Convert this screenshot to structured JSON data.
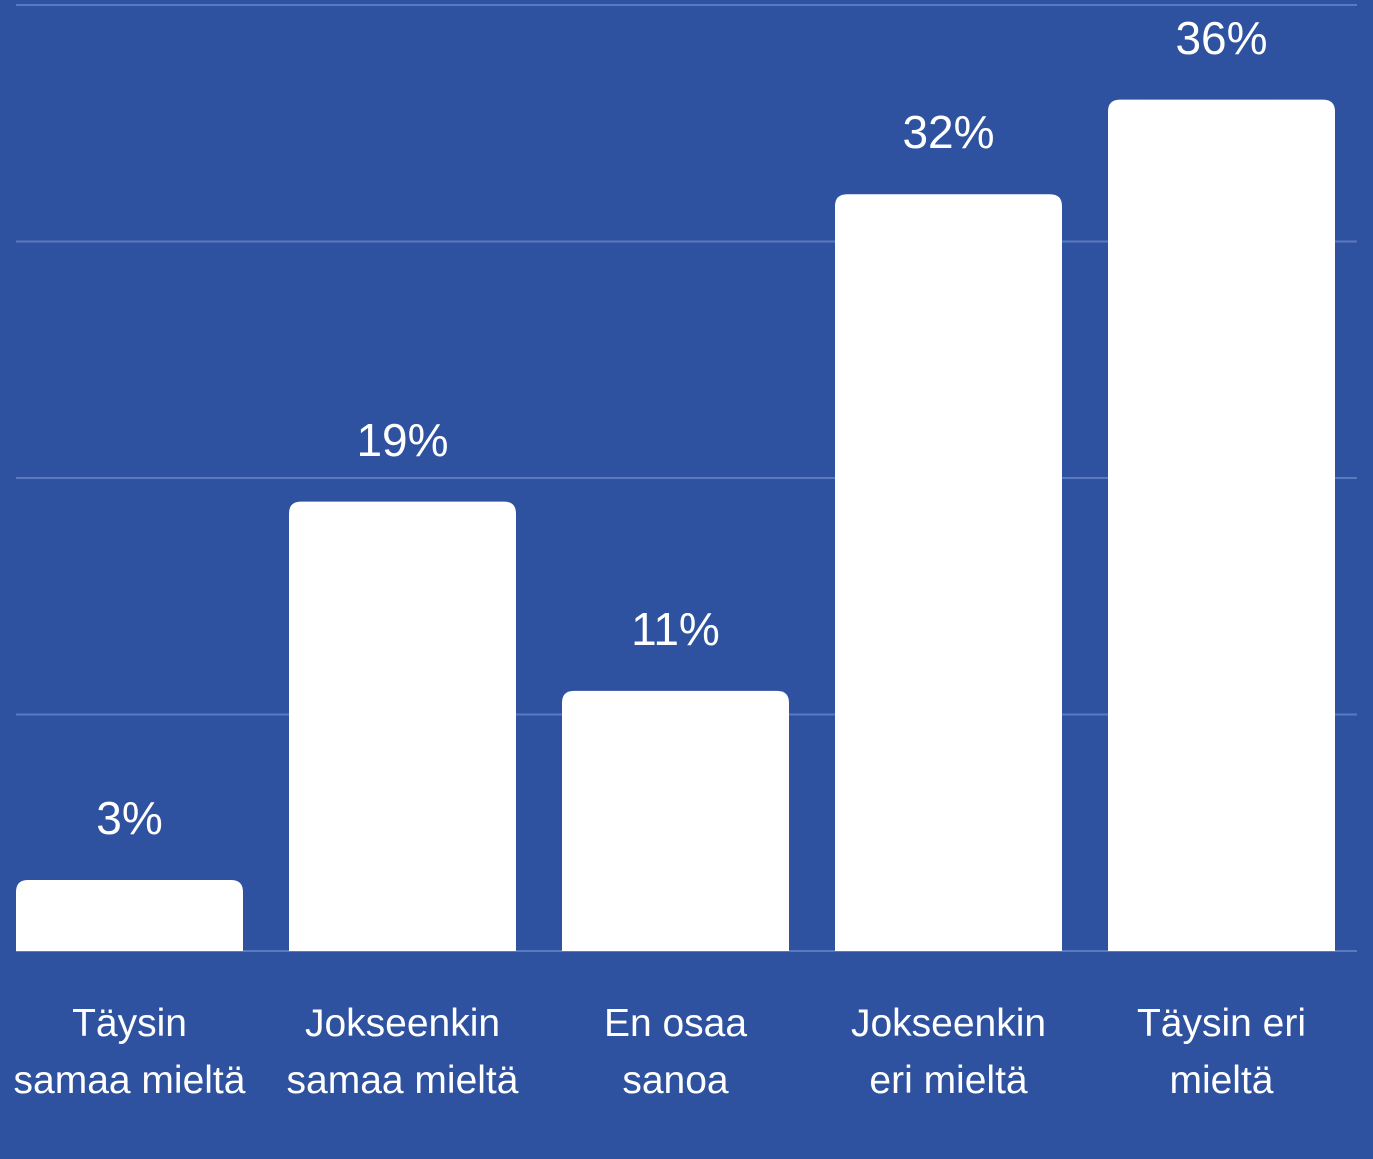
{
  "chart_data": {
    "type": "bar",
    "categories": [
      "Täysin samaa mieltä",
      "Jokseenkin samaa mieltä",
      "En osaa sanoa",
      "Jokseenkin eri mieltä",
      "Täysin eri mieltä"
    ],
    "values": [
      3,
      19,
      11,
      32,
      36
    ],
    "value_labels": [
      "3%",
      "19%",
      "11%",
      "32%",
      "36%"
    ],
    "color": "#ffffff",
    "ylim": [
      0,
      40
    ],
    "yticks": [
      0,
      10,
      20,
      30,
      40
    ],
    "grid": true
  }
}
